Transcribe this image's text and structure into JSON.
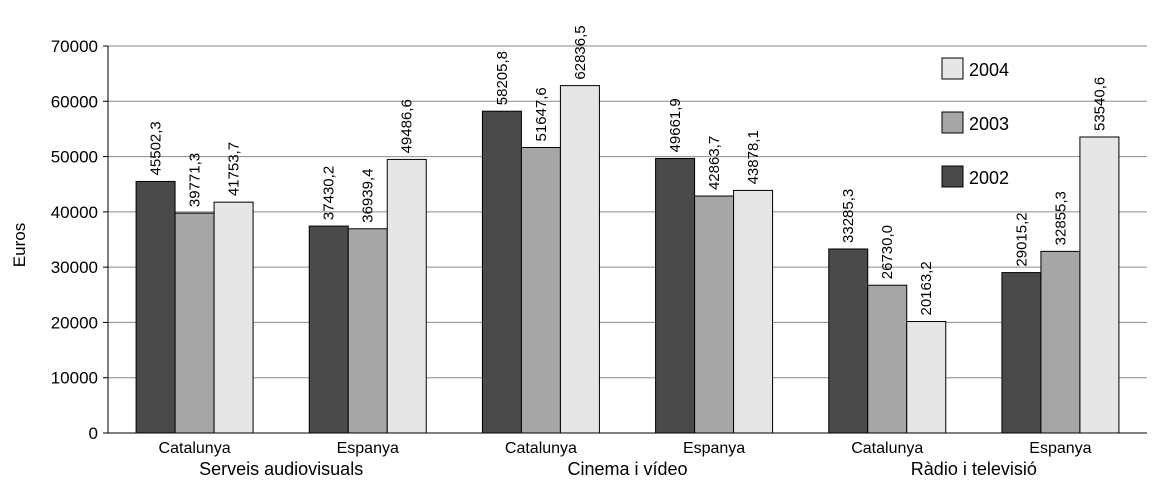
{
  "chart_data": {
    "type": "bar",
    "ylabel": "Euros",
    "xlabel": "",
    "ylim": [
      0,
      70000
    ],
    "yticks": [
      0,
      10000,
      20000,
      30000,
      40000,
      50000,
      60000,
      70000
    ],
    "grid": "horizontal",
    "legend_position": "top-right",
    "categories": [
      "Catalunya",
      "Espanya",
      "Catalunya",
      "Espanya",
      "Catalunya",
      "Espanya"
    ],
    "groups": [
      {
        "label": "Serveis audiovisuals",
        "categories": [
          "Catalunya",
          "Espanya"
        ]
      },
      {
        "label": "Cinema i vídeo",
        "categories": [
          "Catalunya",
          "Espanya"
        ]
      },
      {
        "label": "Ràdio i televisió",
        "categories": [
          "Catalunya",
          "Espanya"
        ]
      }
    ],
    "series": [
      {
        "name": "2002",
        "color": "#4a4a4a",
        "values": [
          45502.3,
          37430.2,
          58205.8,
          49661.9,
          33285.3,
          29015.2
        ],
        "labels": [
          "45502,3",
          "37430,2",
          "58205,8",
          "49661,9",
          "33285,3",
          "29015,2"
        ]
      },
      {
        "name": "2003",
        "color": "#a6a6a6",
        "values": [
          39771.3,
          36939.4,
          51647.6,
          42863.7,
          26730.0,
          32855.3
        ],
        "labels": [
          "39771,3",
          "36939,4",
          "51647,6",
          "42863,7",
          "26730,0",
          "32855,3"
        ]
      },
      {
        "name": "2004",
        "color": "#e6e6e6",
        "values": [
          41753.7,
          49486.6,
          62836.5,
          43878.1,
          20163.2,
          53540.6
        ],
        "labels": [
          "41753,7",
          "49486,6",
          "62836,5",
          "43878,1",
          "20163,2",
          "53540,6"
        ]
      }
    ],
    "legend_order": [
      "2004",
      "2003",
      "2002"
    ]
  }
}
